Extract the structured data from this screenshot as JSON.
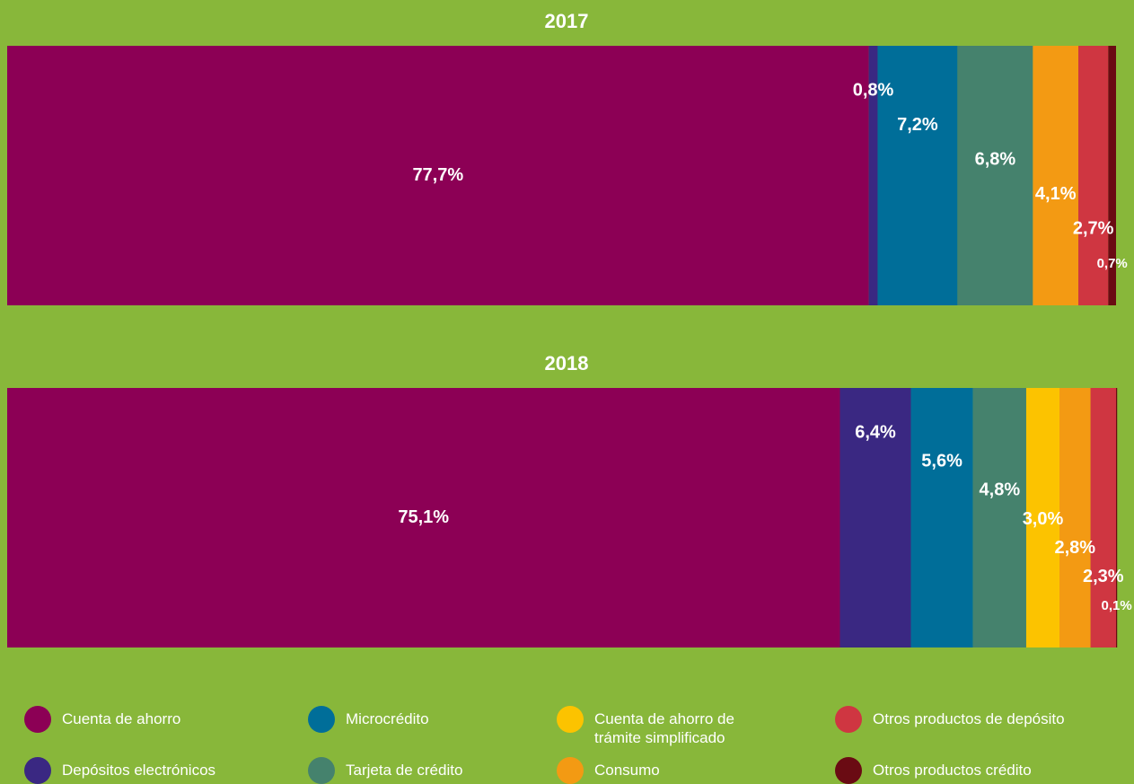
{
  "chart_data": {
    "type": "bar",
    "orientation": "horizontal",
    "stacked": true,
    "categories": [
      "2017",
      "2018"
    ],
    "xlim": [
      0,
      100
    ],
    "series": [
      {
        "name": "Cuenta de ahorro",
        "color": "#8c0055",
        "values": [
          77.7,
          75.1
        ],
        "value_labels": [
          "77,7%",
          "75,1%"
        ]
      },
      {
        "name": "Depósitos electrónicos",
        "color": "#3a2882",
        "values": [
          0.8,
          6.4
        ],
        "value_labels": [
          "0,8%",
          "6,4%"
        ]
      },
      {
        "name": "Microcrédito",
        "color": "#006e99",
        "values": [
          7.2,
          5.6
        ],
        "value_labels": [
          "7,2%",
          "5,6%"
        ]
      },
      {
        "name": "Tarjeta de crédito",
        "color": "#45826d",
        "values": [
          6.8,
          4.8
        ],
        "value_labels": [
          "6,8%",
          "4,8%"
        ]
      },
      {
        "name": "Cuenta de ahorro de trámite simplificado",
        "color": "#fcc300",
        "values": [
          null,
          3.0
        ],
        "value_labels": [
          null,
          "3,0%"
        ]
      },
      {
        "name": "Consumo",
        "color": "#f39a13",
        "values": [
          4.1,
          2.8
        ],
        "value_labels": [
          "4,1%",
          "2,8%"
        ]
      },
      {
        "name": "Otros productos de depósito",
        "color": "#cf3641",
        "values": [
          2.7,
          2.3
        ],
        "value_labels": [
          "2,7%",
          "2,3%"
        ]
      },
      {
        "name": "Otros productos crédito",
        "color": "#6a0b13",
        "values": [
          0.7,
          0.1
        ],
        "value_labels": [
          "0,7%",
          "0,1%"
        ]
      }
    ]
  }
}
